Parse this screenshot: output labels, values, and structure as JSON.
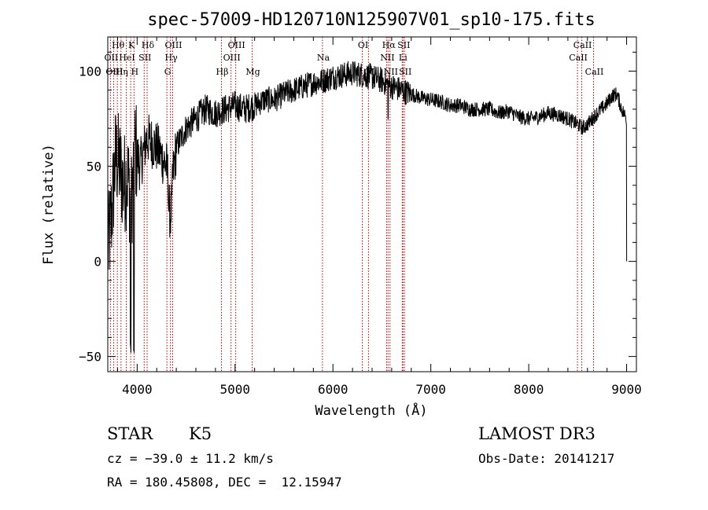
{
  "chart_data": {
    "type": "line",
    "title": "spec-57009-HD120710N125907V01_sp10-175.fits",
    "xlabel": "Wavelength (Å)",
    "ylabel": "Flux (relative)",
    "xlim": [
      3700,
      9100
    ],
    "ylim": [
      -58,
      118
    ],
    "xticks": [
      4000,
      5000,
      6000,
      7000,
      8000,
      9000
    ],
    "xtick_labels": [
      "4000",
      "5000",
      "6000",
      "7000",
      "8000",
      "9000"
    ],
    "yticks": [
      -50,
      0,
      50,
      100
    ],
    "ytick_labels": [
      "−50",
      "0",
      "50",
      "100"
    ],
    "spectrum_envelope": {
      "wavelength": [
        3700,
        3740,
        3780,
        3820,
        3860,
        3900,
        3940,
        3980,
        4030,
        4100,
        4200,
        4300,
        4340,
        4400,
        4500,
        4600,
        4700,
        4800,
        4900,
        5000,
        5100,
        5200,
        5300,
        5400,
        5500,
        5600,
        5700,
        5800,
        5900,
        6000,
        6100,
        6200,
        6300,
        6400,
        6500,
        6560,
        6600,
        6700,
        6800,
        6900,
        7000,
        7100,
        7200,
        7300,
        7400,
        7500,
        7600,
        7700,
        7800,
        7900,
        8000,
        8100,
        8200,
        8300,
        8400,
        8500,
        8550,
        8600,
        8700,
        8800,
        8850,
        8900,
        8950,
        9000
      ],
      "flux": [
        5,
        25,
        55,
        50,
        40,
        45,
        30,
        60,
        50,
        65,
        60,
        50,
        35,
        60,
        70,
        75,
        80,
        78,
        80,
        82,
        80,
        82,
        85,
        85,
        88,
        90,
        92,
        94,
        95,
        97,
        98,
        99,
        98,
        97,
        95,
        93,
        92,
        90,
        88,
        86,
        85,
        84,
        82,
        82,
        80,
        80,
        80,
        78,
        79,
        76,
        75,
        76,
        78,
        77,
        75,
        72,
        70,
        72,
        78,
        83,
        87,
        88,
        80,
        75
      ]
    },
    "line_markers": [
      {
        "name": "OII",
        "wavelength": 3727,
        "row": 2
      },
      {
        "name": "OIII",
        "wavelength": 3760,
        "row": 3
      },
      {
        "name": "Hθ",
        "wavelength": 3798,
        "row": 1
      },
      {
        "name": "Hη",
        "wavelength": 3835,
        "row": 3
      },
      {
        "name": "HeI",
        "wavelength": 3889,
        "row": 2
      },
      {
        "name": "K",
        "wavelength": 3934,
        "row": 1
      },
      {
        "name": "H",
        "wavelength": 3968,
        "row": 3
      },
      {
        "name": "SII",
        "wavelength": 4072,
        "row": 2
      },
      {
        "name": "Hδ",
        "wavelength": 4102,
        "row": 1
      },
      {
        "name": "G",
        "wavelength": 4304,
        "row": 3
      },
      {
        "name": "Hγ",
        "wavelength": 4340,
        "row": 2
      },
      {
        "name": "OIII",
        "wavelength": 4363,
        "row": 1
      },
      {
        "name": "Hβ",
        "wavelength": 4861,
        "row": 3
      },
      {
        "name": "OIII",
        "wavelength": 4959,
        "row": 2
      },
      {
        "name": "OIII",
        "wavelength": 5007,
        "row": 1
      },
      {
        "name": "Mg",
        "wavelength": 5175,
        "row": 3
      },
      {
        "name": "Na",
        "wavelength": 5893,
        "row": 2
      },
      {
        "name": "OI",
        "wavelength": 6300,
        "row": 1
      },
      {
        "name": "OI",
        "wavelength": 6363,
        "row": 3
      },
      {
        "name": "NII",
        "wavelength": 6548,
        "row": 2
      },
      {
        "name": "Hα",
        "wavelength": 6563,
        "row": 1
      },
      {
        "name": "NII",
        "wavelength": 6583,
        "row": 3
      },
      {
        "name": "Li",
        "wavelength": 6708,
        "row": 2
      },
      {
        "name": "SII",
        "wavelength": 6716,
        "row": 1
      },
      {
        "name": "SII",
        "wavelength": 6731,
        "row": 3
      },
      {
        "name": "CaII",
        "wavelength": 8498,
        "row": 2
      },
      {
        "name": "CaII",
        "wavelength": 8542,
        "row": 1
      },
      {
        "name": "CaII",
        "wavelength": 8662,
        "row": 3
      }
    ]
  },
  "info": {
    "class": "STAR",
    "subclass": "K5",
    "cz": "cz = −39.0 ± 11.2 km/s",
    "coords": "RA = 180.45808, DEC =  12.15947",
    "survey": "LAMOST DR3",
    "obs_date": "Obs-Date: 20141217"
  },
  "colors": {
    "spectrum": "#000000",
    "marker": "#c00000",
    "axis": "#000000"
  }
}
